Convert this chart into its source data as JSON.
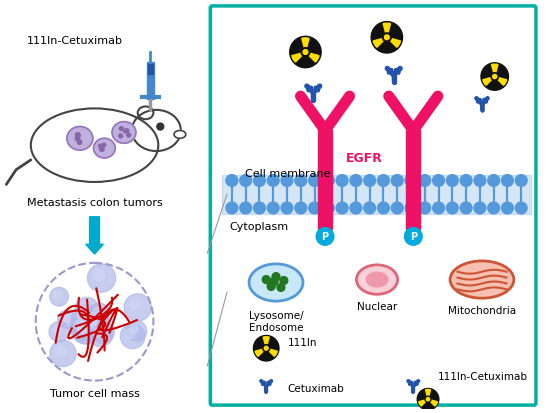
{
  "title": "",
  "bg_color": "#ffffff",
  "teal_border_color": "#00b0a0",
  "border_linewidth": 3,
  "left_panel": {
    "mouse_label": "111In-Cetuximab",
    "tumor_label": "Metastasis colon tumors",
    "mass_label": "Tumor cell mass",
    "arrow_color": "#00aacc",
    "mouse_outline": "#333333",
    "tumor_color": "#b0a0cc",
    "tumor_spot_color": "#8870aa",
    "cell_mass_color": "#aaaadd",
    "blood_vessel_color": "#cc0000"
  },
  "right_panel": {
    "membrane_color": "#5599dd",
    "receptor_color": "#ee1166",
    "phospho_color": "#00aadd",
    "antibody_color": "#2255aa",
    "radiation_color": "#ffdd00",
    "radiation_black": "#111111",
    "egfr_label": "EGFR",
    "cell_membrane_label": "Cell membrane",
    "cytoplasm_label": "Cytoplasm",
    "lysosome_label": "Lysosome/\nEndosome",
    "nuclear_label": "Nuclear",
    "mitochondria_label": "Mitochondria",
    "in111_label": "111In",
    "cetuximab_label": "Cetuximab",
    "conjugate_label": "111In-Cetuximab",
    "lysosome_bg": "#c8e8f8",
    "lysosome_border": "#5599dd",
    "lysosome_dot_color": "#227722",
    "nuclear_bg": "#f8d0d8",
    "nuclear_border": "#dd6677",
    "nuclear_inner": "#ee99aa",
    "mito_bg": "#f8c0b0",
    "mito_border": "#cc5533"
  }
}
